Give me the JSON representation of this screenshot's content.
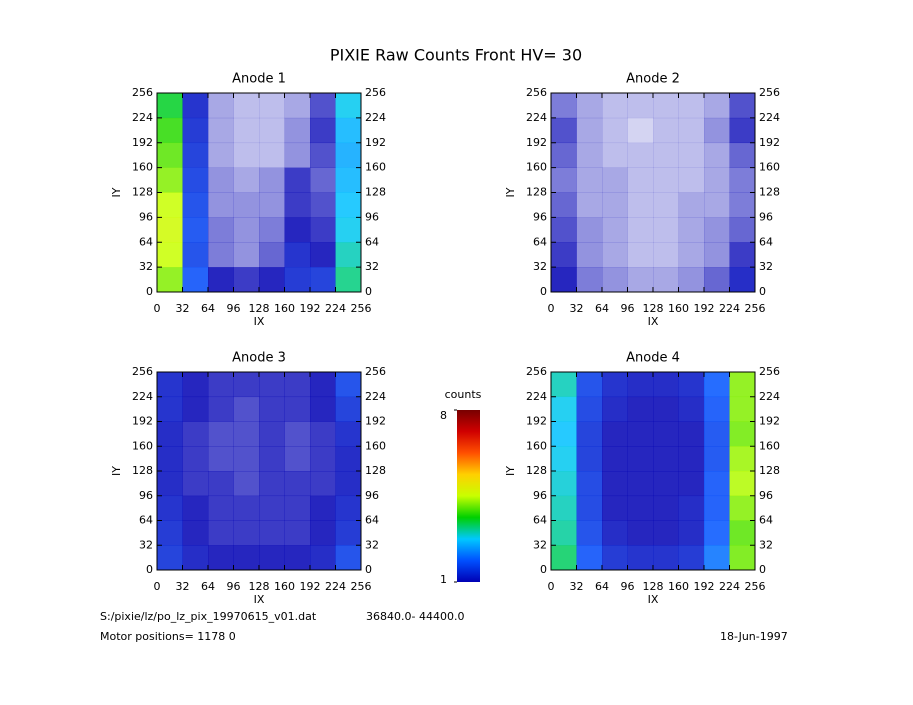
{
  "title": "PIXIE Raw Counts Front HV= 30",
  "footer": {
    "file": "S:/pixie/lz/po_lz_pix_19970615_v01.dat",
    "range": "36840.0- 44400.0",
    "motor": "Motor positions= 1178 0",
    "date": "18-Jun-1997"
  },
  "chart_data": [
    {
      "type": "heatmap",
      "title": "Anode 1",
      "xlabel": "IX",
      "ylabel": "IY",
      "xlim": [
        0,
        256
      ],
      "ylim": [
        0,
        256
      ],
      "xticks": [
        0,
        32,
        64,
        96,
        128,
        160,
        192,
        224,
        256
      ],
      "yticks": [
        0,
        32,
        64,
        96,
        128,
        160,
        192,
        224,
        256
      ],
      "values": [
        [
          3.5,
          1.2,
          0.4,
          0.3,
          0.3,
          0.4,
          0.8,
          2.8
        ],
        [
          3.8,
          1.3,
          0.4,
          0.3,
          0.3,
          0.5,
          0.9,
          2.6
        ],
        [
          4,
          1.4,
          0.4,
          0.3,
          0.3,
          0.5,
          0.8,
          2.5
        ],
        [
          4.2,
          1.5,
          0.5,
          0.4,
          0.5,
          0.9,
          0.7,
          2.6
        ],
        [
          4.5,
          1.6,
          0.5,
          0.5,
          0.5,
          0.9,
          0.8,
          2.7
        ],
        [
          4.6,
          1.7,
          0.6,
          0.5,
          0.6,
          1,
          0.9,
          2.8
        ],
        [
          4.5,
          1.6,
          0.6,
          0.5,
          0.7,
          1.2,
          1,
          3
        ],
        [
          4.2,
          1.8,
          1,
          0.9,
          1,
          1.3,
          1.4,
          3.2
        ]
      ]
    },
    {
      "type": "heatmap",
      "title": "Anode 2",
      "xlabel": "IX",
      "ylabel": "IY",
      "xlim": [
        0,
        256
      ],
      "ylim": [
        0,
        256
      ],
      "xticks": [
        0,
        32,
        64,
        96,
        128,
        160,
        192,
        224,
        256
      ],
      "yticks": [
        0,
        32,
        64,
        96,
        128,
        160,
        192,
        224,
        256
      ],
      "values": [
        [
          0.6,
          0.4,
          0.3,
          0.3,
          0.3,
          0.3,
          0.4,
          0.8
        ],
        [
          0.8,
          0.4,
          0.3,
          0.2,
          0.3,
          0.3,
          0.5,
          0.9
        ],
        [
          0.7,
          0.4,
          0.3,
          0.3,
          0.3,
          0.3,
          0.4,
          0.7
        ],
        [
          0.6,
          0.4,
          0.4,
          0.3,
          0.3,
          0.3,
          0.4,
          0.6
        ],
        [
          0.7,
          0.4,
          0.4,
          0.3,
          0.3,
          0.4,
          0.4,
          0.6
        ],
        [
          0.8,
          0.5,
          0.4,
          0.3,
          0.3,
          0.4,
          0.5,
          0.7
        ],
        [
          0.9,
          0.5,
          0.4,
          0.3,
          0.3,
          0.4,
          0.5,
          0.9
        ],
        [
          1,
          0.6,
          0.5,
          0.4,
          0.4,
          0.5,
          0.7,
          1.1
        ]
      ]
    },
    {
      "type": "heatmap",
      "title": "Anode 3",
      "xlabel": "IX",
      "ylabel": "IY",
      "xlim": [
        0,
        256
      ],
      "ylim": [
        0,
        256
      ],
      "xticks": [
        0,
        32,
        64,
        96,
        128,
        160,
        192,
        224,
        256
      ],
      "yticks": [
        0,
        32,
        64,
        96,
        128,
        160,
        192,
        224,
        256
      ],
      "values": [
        [
          1.2,
          1,
          0.9,
          0.9,
          0.9,
          0.9,
          1,
          1.6
        ],
        [
          1.2,
          1,
          0.9,
          0.8,
          0.9,
          0.9,
          1,
          1.4
        ],
        [
          1.1,
          0.9,
          0.8,
          0.8,
          0.9,
          0.8,
          0.9,
          1.2
        ],
        [
          1.1,
          0.9,
          0.8,
          0.8,
          0.9,
          0.8,
          0.9,
          1.1
        ],
        [
          1.1,
          0.9,
          0.9,
          0.8,
          0.9,
          0.9,
          0.9,
          1.1
        ],
        [
          1.2,
          1,
          0.9,
          0.9,
          0.9,
          0.9,
          1,
          1.2
        ],
        [
          1.3,
          1,
          0.9,
          0.9,
          0.9,
          0.9,
          1,
          1.3
        ],
        [
          1.4,
          1.1,
          1,
          1,
          1,
          1,
          1.1,
          1.6
        ]
      ]
    },
    {
      "type": "heatmap",
      "title": "Anode 4",
      "xlabel": "IX",
      "ylabel": "IY",
      "xlim": [
        0,
        256
      ],
      "ylim": [
        0,
        256
      ],
      "xticks": [
        0,
        32,
        64,
        96,
        128,
        160,
        192,
        224,
        256
      ],
      "yticks": [
        0,
        32,
        64,
        96,
        128,
        160,
        192,
        224,
        256
      ],
      "values": [
        [
          3,
          1.6,
          1.2,
          1.1,
          1.1,
          1.2,
          1.9,
          4.2
        ],
        [
          2.8,
          1.5,
          1.1,
          1,
          1,
          1.1,
          1.8,
          4.2
        ],
        [
          2.7,
          1.4,
          1,
          1,
          1,
          1,
          1.7,
          4.1
        ],
        [
          2.8,
          1.4,
          1,
          1,
          1,
          1,
          1.7,
          4.3
        ],
        [
          2.9,
          1.5,
          1,
          1,
          1,
          1,
          1.8,
          4.4
        ],
        [
          3,
          1.5,
          1,
          1,
          1,
          1.1,
          1.8,
          4.2
        ],
        [
          3.1,
          1.6,
          1.1,
          1,
          1,
          1.1,
          1.9,
          4
        ],
        [
          3.3,
          1.8,
          1.3,
          1.2,
          1.2,
          1.3,
          2.1,
          4.1
        ]
      ]
    },
    {
      "type": "colorbar",
      "label": "counts",
      "lim": [
        1,
        8
      ],
      "ticks": [
        1,
        8
      ],
      "colors": [
        "#0000b4",
        "#0050ff",
        "#00c8ff",
        "#00d000",
        "#c8ff00",
        "#ffd000",
        "#ff5000",
        "#d00000",
        "#780000"
      ]
    }
  ]
}
